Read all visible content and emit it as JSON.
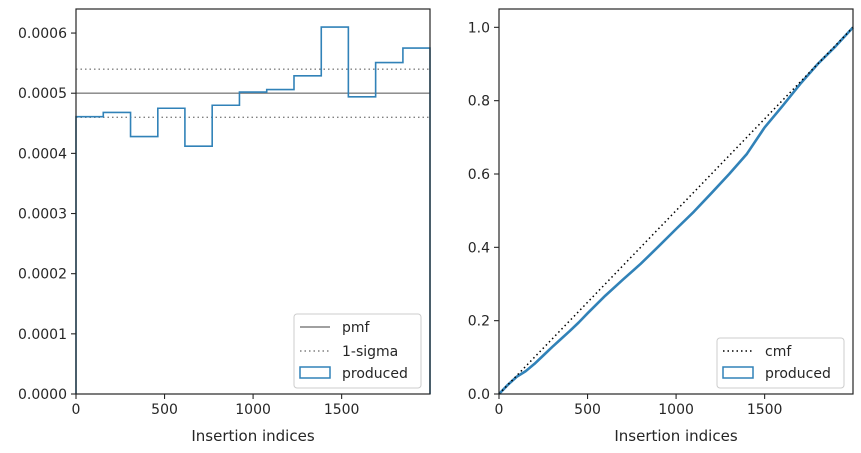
{
  "chart_data": [
    {
      "type": "line",
      "subtype": "step-histogram",
      "xlabel": "Insertion indices",
      "ylabel": "",
      "xlim": [
        0,
        1999
      ],
      "ylim": [
        0,
        0.00064
      ],
      "xticks": [
        0,
        500,
        1000,
        1500
      ],
      "xtick_labels": [
        "0",
        "500",
        "1000",
        "1500"
      ],
      "yticks": [
        0,
        0.0001,
        0.0002,
        0.0003,
        0.0004,
        0.0005,
        0.0006
      ],
      "ytick_labels": [
        "0.0000",
        "0.0001",
        "0.0002",
        "0.0003",
        "0.0004",
        "0.0005",
        "0.0006"
      ],
      "pmf": 0.0005,
      "sigma_band": [
        0.00046,
        0.00054
      ],
      "bin_edges": [
        0,
        154,
        308,
        462,
        615,
        769,
        923,
        1077,
        1231,
        1385,
        1538,
        1692,
        1846,
        1999
      ],
      "produced": [
        0.000461,
        0.000468,
        0.000428,
        0.000475,
        0.000412,
        0.00048,
        0.000502,
        0.000506,
        0.000529,
        0.00061,
        0.000494,
        0.000551,
        0.000575
      ],
      "legend": {
        "position": "lower right",
        "entries": [
          {
            "label": "pmf",
            "style": "gray-solid"
          },
          {
            "label": "1-sigma",
            "style": "gray-dotted"
          },
          {
            "label": "produced",
            "style": "blue-box"
          }
        ]
      },
      "grid": false
    },
    {
      "type": "line",
      "xlabel": "Insertion indices",
      "ylabel": "",
      "xlim": [
        0,
        1999
      ],
      "ylim": [
        0,
        1.05
      ],
      "xticks": [
        0,
        500,
        1000,
        1500
      ],
      "xtick_labels": [
        "0",
        "500",
        "1000",
        "1500"
      ],
      "yticks": [
        0,
        0.2,
        0.4,
        0.6,
        0.8,
        1.0
      ],
      "ytick_labels": [
        "0.0",
        "0.2",
        "0.4",
        "0.6",
        "0.8",
        "1.0"
      ],
      "cmf": {
        "x": [
          0,
          1999
        ],
        "y": [
          0,
          1
        ]
      },
      "produced": {
        "x": [
          0,
          50,
          100,
          150,
          200,
          250,
          300,
          350,
          400,
          450,
          500,
          600,
          700,
          800,
          900,
          1000,
          1100,
          1200,
          1300,
          1400,
          1500,
          1600,
          1700,
          1800,
          1900,
          1999
        ],
        "y": [
          0,
          0.025,
          0.047,
          0.062,
          0.082,
          0.105,
          0.128,
          0.15,
          0.172,
          0.195,
          0.22,
          0.268,
          0.312,
          0.355,
          0.402,
          0.45,
          0.497,
          0.548,
          0.6,
          0.655,
          0.727,
          0.785,
          0.845,
          0.9,
          0.948,
          1.0
        ]
      },
      "legend": {
        "position": "lower right",
        "entries": [
          {
            "label": "cmf",
            "style": "black-dotted"
          },
          {
            "label": "produced",
            "style": "blue-box"
          }
        ]
      },
      "grid": false
    }
  ],
  "colors": {
    "produced": "#3182b8",
    "pmf": "#808080",
    "cmf": "#000000",
    "axes": "#262626"
  }
}
